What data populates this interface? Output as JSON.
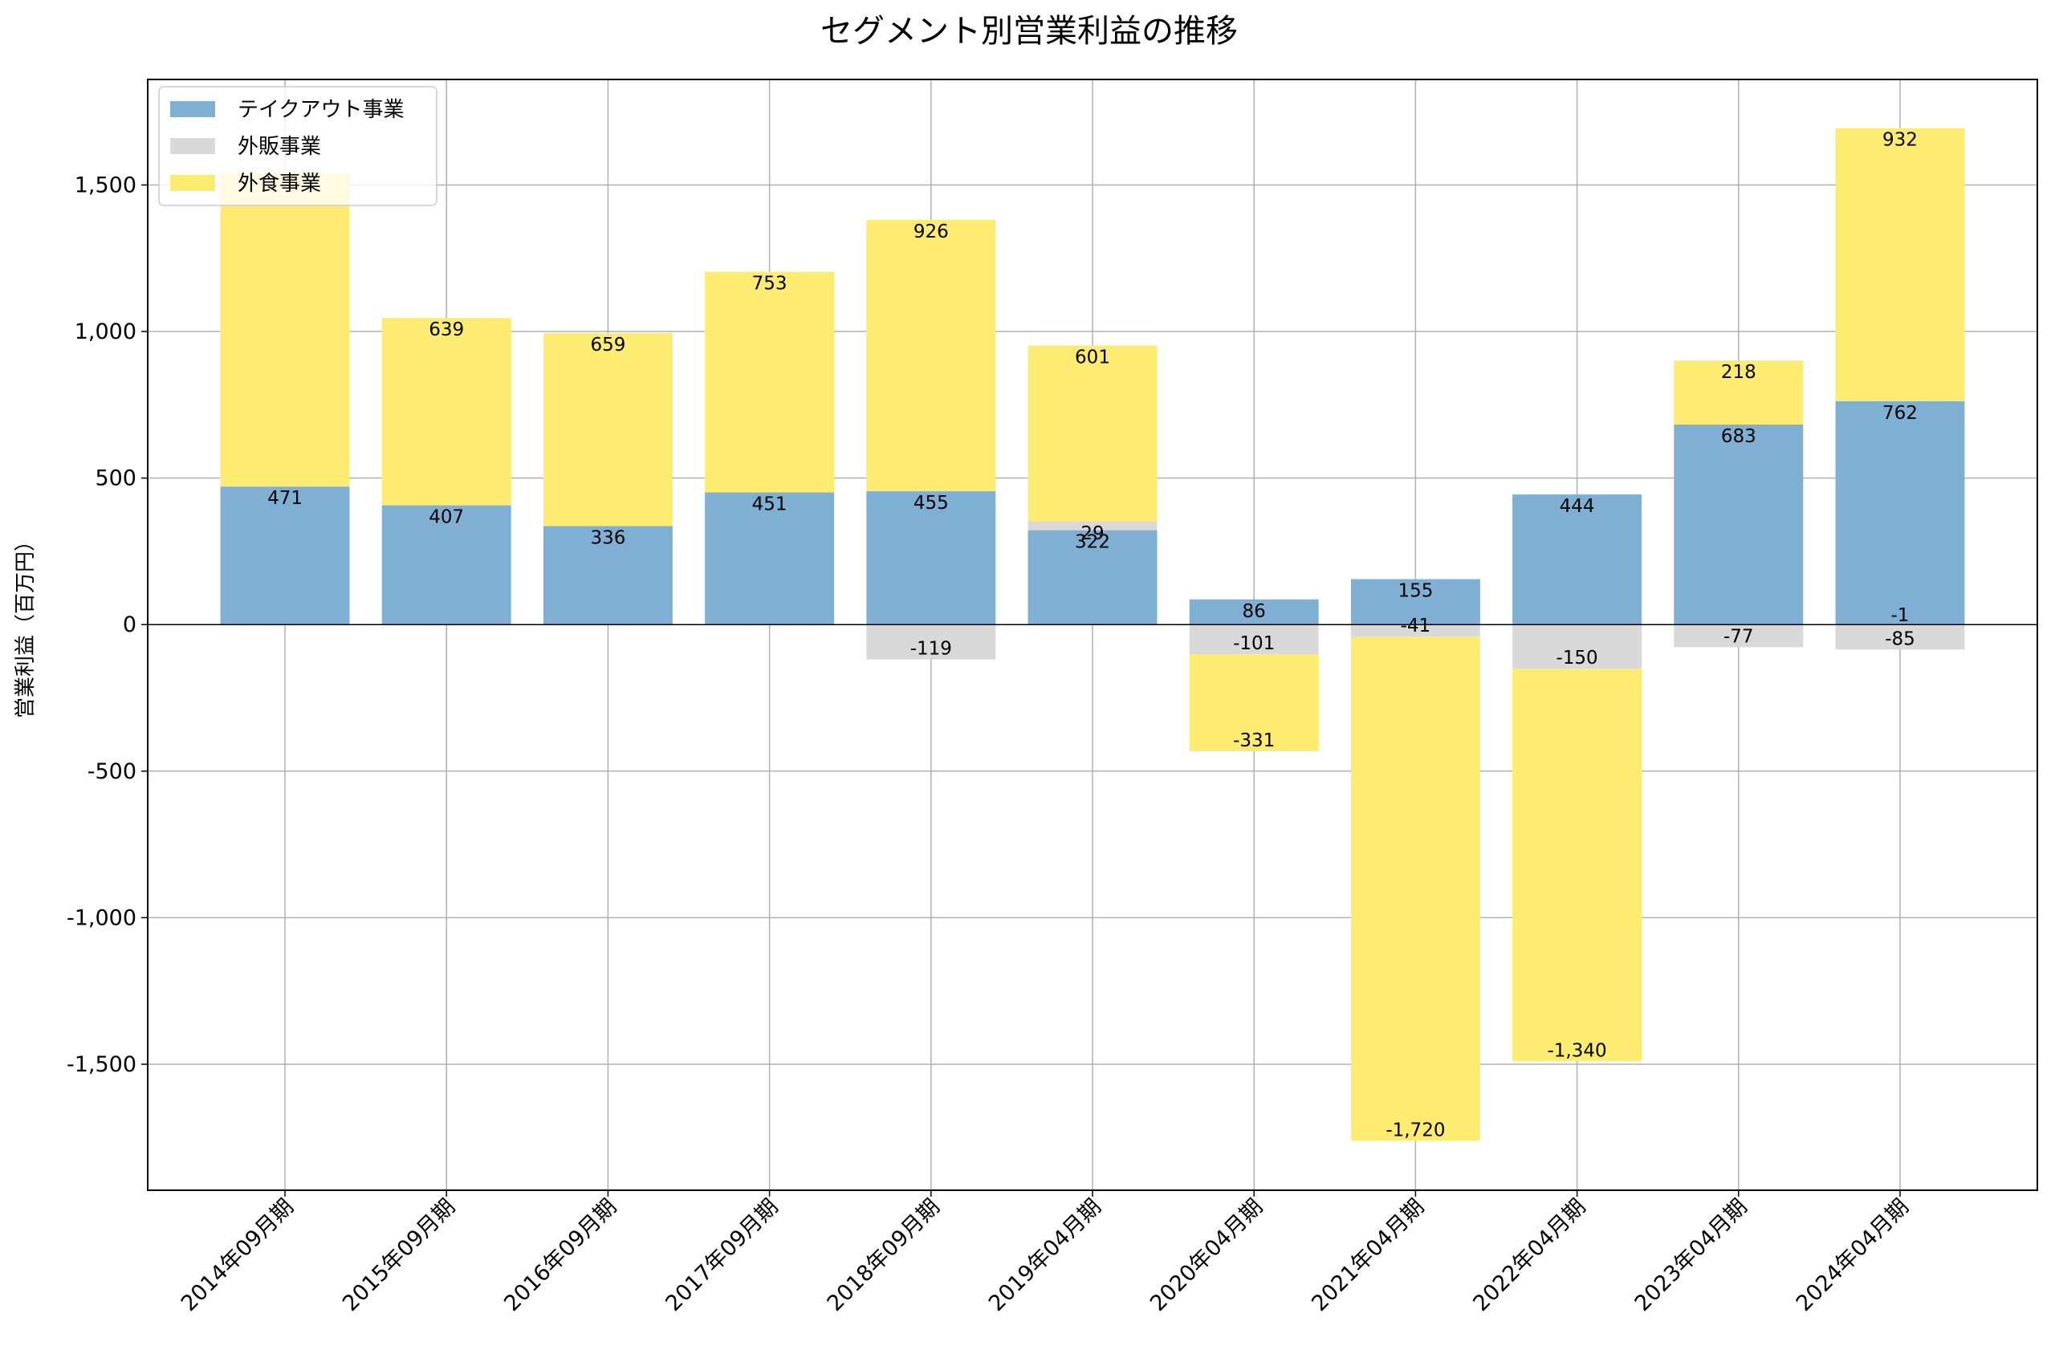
{
  "chart_data": {
    "type": "bar",
    "stacked": true,
    "stacking": "diverging",
    "title": "セグメント別営業利益の推移",
    "xlabel": "",
    "ylabel": "営業利益（百万円）",
    "ylim": [
      -1930,
      1860
    ],
    "yticks": [
      -1500,
      -1000,
      -500,
      0,
      500,
      1000,
      1500
    ],
    "ytick_labels": [
      "-1,500",
      "-1,000",
      "-500",
      "0",
      "500",
      "1,000",
      "1,500"
    ],
    "grid": true,
    "legend_position": "top-left",
    "categories": [
      "2014年09月期",
      "2015年09月期",
      "2016年09月期",
      "2017年09月期",
      "2018年09月期",
      "2019年04月期",
      "2020年04月期",
      "2021年04月期",
      "2022年04月期",
      "2023年04月期",
      "2024年04月期"
    ],
    "series": [
      {
        "name": "テイクアウト事業",
        "color": "#7fb0d4",
        "values": [
          471,
          407,
          336,
          451,
          455,
          322,
          86,
          155,
          444,
          683,
          762
        ],
        "labels": [
          "471",
          "407",
          "336",
          "451",
          "455",
          "322",
          "86",
          "155",
          "444",
          "683",
          "762"
        ]
      },
      {
        "name": "外販事業",
        "color": "#d9d9d9",
        "values": [
          0,
          0,
          0,
          0,
          -119,
          29,
          -101,
          -41,
          -150,
          -77,
          -85
        ],
        "labels": [
          "",
          "",
          "",
          "",
          "-119",
          "29",
          "-101",
          "-41",
          "-150",
          "-77",
          "-85"
        ]
      },
      {
        "name": "外食事業",
        "color": "#feeb72",
        "values": [
          1070,
          639,
          659,
          753,
          926,
          601,
          -331,
          -1720,
          -1340,
          218,
          932
        ],
        "labels": [
          "",
          "639",
          "659",
          "753",
          "926",
          "601",
          "-331",
          "-1,720",
          "-1,340",
          "218",
          "932"
        ]
      }
    ],
    "extra_labels": [
      {
        "category_index": 10,
        "text": "-1"
      }
    ]
  }
}
